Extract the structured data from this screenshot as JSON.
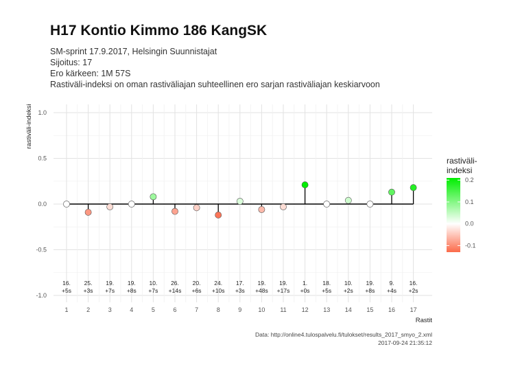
{
  "header": {
    "title": "H17 Kontio Kimmo 186 KangSK",
    "subtitle_lines": [
      "SM-sprint 17.9.2017, Helsingin Suunnistajat",
      "Sijoitus: 17",
      "Ero kärkeen: 1M 57S",
      "Rastiväli-indeksi on oman rastiväliajan suhteellinen ero sarjan rastiväliajan keskiarvoon"
    ]
  },
  "caption": {
    "line1": "Data: http://online4.tulospalvelu.fi/tulokset/results_2017_smyo_2.xml",
    "line2": "2017-09-24 21:35:12"
  },
  "chart_data": {
    "type": "lollipop",
    "xlabel": "Rastit",
    "ylabel": "rastiväli-indeksi",
    "ylim": [
      -1.05,
      1.05
    ],
    "yticks": [
      1.0,
      0.5,
      0.0,
      -0.5,
      -1.0
    ],
    "ytick_labels": [
      "1.0",
      "0.5",
      "0.0",
      "-0.5",
      "-1.0"
    ],
    "x": [
      1,
      2,
      3,
      4,
      5,
      6,
      7,
      8,
      9,
      10,
      11,
      12,
      13,
      14,
      15,
      16,
      17
    ],
    "values": [
      0.0,
      -0.09,
      -0.03,
      0.0,
      0.08,
      -0.08,
      -0.04,
      -0.12,
      0.03,
      -0.06,
      -0.03,
      0.21,
      0.0,
      0.04,
      0.0,
      0.13,
      0.18
    ],
    "annotations": [
      [
        "16.",
        "+5s"
      ],
      [
        "25.",
        "+3s"
      ],
      [
        "19.",
        "+7s"
      ],
      [
        "19.",
        "+8s"
      ],
      [
        "10.",
        "+7s"
      ],
      [
        "26.",
        "+14s"
      ],
      [
        "20.",
        "+6s"
      ],
      [
        "24.",
        "+10s"
      ],
      [
        "17.",
        "+3s"
      ],
      [
        "19.",
        "+48s"
      ],
      [
        "19.",
        "+17s"
      ],
      [
        "1.",
        "+0s"
      ],
      [
        "18.",
        "+5s"
      ],
      [
        "10.",
        "+2s"
      ],
      [
        "19.",
        "+8s"
      ],
      [
        "9.",
        "+4s"
      ],
      [
        "16.",
        "+2s"
      ]
    ],
    "legend": {
      "title_lines": [
        "rastiväli-",
        "indeksi"
      ],
      "tick_values": [
        0.2,
        0.1,
        0.0,
        -0.1
      ],
      "tick_labels": [
        "0.2",
        "0.1",
        "0.0",
        "-0.1"
      ],
      "range": [
        -0.13,
        0.21
      ],
      "placement": "right"
    },
    "colors": {
      "high": "#00ee00",
      "mid": "#ffffff",
      "low": "#fb6a4a"
    },
    "grid": true
  }
}
